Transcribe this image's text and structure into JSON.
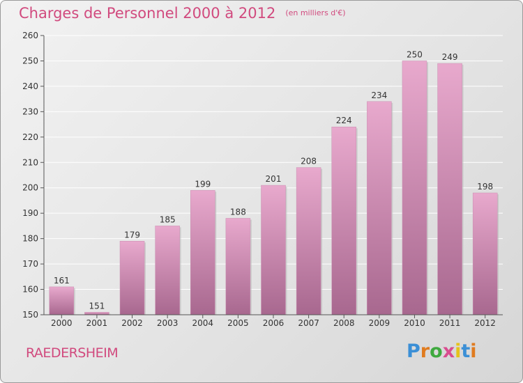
{
  "header": {
    "title": "Charges de Personnel 2000 à 2012",
    "subtitle": "(en milliers d'€)"
  },
  "footer": {
    "location": "RAEDERSHEIM",
    "logo_text": "Proxiti"
  },
  "colors": {
    "title": "#d14a7e",
    "bar_top": "#e8a9cd",
    "bar_bottom": "#a8688f",
    "axis": "#555555",
    "grid": "#ffffff"
  },
  "logo_letter_colors": [
    "#3b8fd6",
    "#e07b1f",
    "#3ea93e",
    "#d94c8f",
    "#e6c21a",
    "#3b8fd6",
    "#e07b1f"
  ],
  "chart_data": {
    "type": "bar",
    "title": "Charges de Personnel 2000 à 2012",
    "subtitle": "(en milliers d'€)",
    "categories": [
      "2000",
      "2001",
      "2002",
      "2003",
      "2004",
      "2005",
      "2006",
      "2007",
      "2008",
      "2009",
      "2010",
      "2011",
      "2012"
    ],
    "values": [
      161,
      151,
      179,
      185,
      199,
      188,
      201,
      208,
      224,
      234,
      250,
      249,
      198
    ],
    "ylim": [
      150,
      260
    ],
    "yticks": [
      150,
      160,
      170,
      180,
      190,
      200,
      210,
      220,
      230,
      240,
      250,
      260
    ],
    "xlabel": "",
    "ylabel": "",
    "grid": true
  }
}
